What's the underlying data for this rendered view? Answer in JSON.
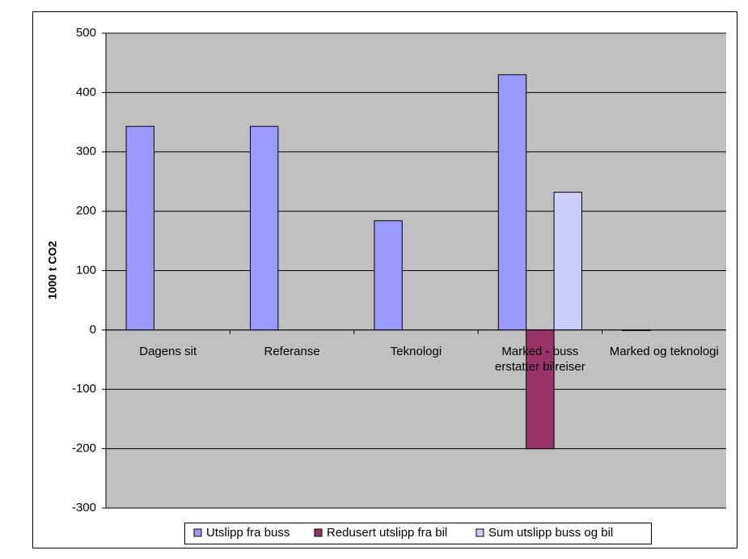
{
  "chart_data": {
    "type": "bar",
    "y_label": "1000 t CO2",
    "categories": [
      "Dagens sit",
      "Referanse",
      "Teknologi",
      "Marked - buss erstatter bilreiser",
      "Marked og teknologi"
    ],
    "series": [
      {
        "name": "Utslipp fra buss",
        "color": "#9999ff",
        "values": [
          343,
          343,
          184,
          430,
          -1
        ]
      },
      {
        "name": "Redusert utslipp fra bil",
        "color": "#993366",
        "values": [
          null,
          null,
          null,
          -200,
          null
        ]
      },
      {
        "name": "Sum utslipp buss og bil",
        "color": "#ccccff",
        "values": [
          null,
          null,
          null,
          232,
          null
        ]
      }
    ],
    "ylim": [
      -300,
      500
    ],
    "yticks": [
      -300,
      -200,
      -100,
      0,
      100,
      200,
      300,
      400,
      500
    ],
    "grid": true,
    "plot_background": "#c0c0c0",
    "legend": "bottom"
  }
}
